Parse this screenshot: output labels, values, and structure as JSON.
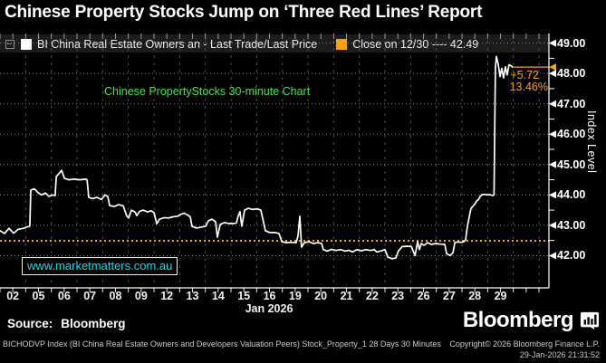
{
  "window": {
    "title": "Chinese Property Stocks Jump on ‘Three Red Lines’ Report"
  },
  "legend": {
    "series_marker_color": "#ffffff",
    "series_label": "BI China Real Estate Owners an - Last Trade/Last Price",
    "close_marker_color": "#f7a11a",
    "close_label": "Close on 12/30 ---- 42.49"
  },
  "annotations": {
    "chart_note": "Chinese PropertyStocks 30-minute Chart",
    "watermark": "www.marketmatters.com.au",
    "change_abs": "+5.72",
    "change_pct": "13.46%"
  },
  "axes": {
    "y_title": "Index Level",
    "x_group_label": "Jan 2026"
  },
  "footer": {
    "source_label": "Source:",
    "source_value": "Bloomberg",
    "logo_text": "Bloomberg",
    "description": "BICHODVP Index (BI China Real Estate Owners and Developers Valuation Peers) Stock_Property_1 28 Days 30 Minutes",
    "copyright": "Copyright© 2026 Bloomberg Finance L.P.",
    "timestamp": "29-Jan-2026 21:31:52"
  },
  "chart_data": {
    "type": "line",
    "title": "Chinese Property Stocks Jump on ‘Three Red Lines’ Report",
    "x_axis": {
      "tick_labels": [
        "02",
        "05",
        "06",
        "07",
        "08",
        "09",
        "12",
        "13",
        "14",
        "15",
        "16",
        "19",
        "20",
        "21",
        "22",
        "23",
        "26",
        "27",
        "28",
        "29"
      ],
      "group_label": "Jan 2026",
      "unit": "trading-day index, 30-minute bars within each day"
    },
    "y_axis": {
      "label": "Index Level",
      "tick_values": [
        42,
        43,
        44,
        45,
        46,
        47,
        48,
        49
      ],
      "ylim": [
        40.9,
        49.3
      ]
    },
    "grid": true,
    "legend_position": "top",
    "close_reference": {
      "label": "Close on 12/30",
      "value": 42.49,
      "color": "#f7a11a"
    },
    "last_price": {
      "value": 48.21,
      "change": 5.72,
      "pct_change": 13.46
    },
    "series": [
      {
        "name": "BI China Real Estate Owners an - Last Trade/Last Price",
        "color": "#ffffff",
        "points": [
          [
            0,
            42.82
          ],
          [
            0.18,
            42.73
          ],
          [
            0.35,
            42.9
          ],
          [
            0.53,
            42.74
          ],
          [
            0.71,
            42.87
          ],
          [
            0.92,
            42.9
          ],
          [
            1.06,
            42.95
          ],
          [
            1.16,
            42.97
          ],
          [
            1.2,
            44.16
          ],
          [
            1.34,
            44.2
          ],
          [
            1.48,
            44.08
          ],
          [
            1.62,
            44.0
          ],
          [
            1.77,
            44.06
          ],
          [
            1.91,
            43.95
          ],
          [
            2.05,
            44.0
          ],
          [
            2.15,
            43.98
          ],
          [
            2.19,
            44.6
          ],
          [
            2.29,
            44.7
          ],
          [
            2.4,
            44.81
          ],
          [
            2.51,
            44.55
          ],
          [
            2.68,
            44.5
          ],
          [
            2.89,
            44.52
          ],
          [
            3.11,
            44.5
          ],
          [
            3.32,
            44.52
          ],
          [
            3.39,
            44.5
          ],
          [
            3.46,
            43.92
          ],
          [
            3.6,
            43.88
          ],
          [
            3.78,
            43.92
          ],
          [
            3.95,
            43.85
          ],
          [
            4.09,
            44.0
          ],
          [
            4.2,
            43.95
          ],
          [
            4.27,
            43.65
          ],
          [
            4.45,
            43.62
          ],
          [
            4.62,
            43.68
          ],
          [
            4.8,
            43.64
          ],
          [
            4.94,
            43.3
          ],
          [
            5.01,
            43.24
          ],
          [
            5.12,
            43.5
          ],
          [
            5.26,
            43.44
          ],
          [
            5.33,
            43.32
          ],
          [
            5.44,
            43.46
          ],
          [
            5.58,
            43.5
          ],
          [
            5.75,
            43.44
          ],
          [
            5.89,
            43.48
          ],
          [
            6.0,
            43.42
          ],
          [
            6.11,
            43.05
          ],
          [
            6.21,
            43.2
          ],
          [
            6.39,
            43.25
          ],
          [
            6.56,
            43.24
          ],
          [
            6.74,
            43.28
          ],
          [
            6.92,
            43.3
          ],
          [
            7.02,
            43.35
          ],
          [
            7.17,
            43.4
          ],
          [
            7.31,
            43.34
          ],
          [
            7.41,
            43.28
          ],
          [
            7.48,
            42.97
          ],
          [
            7.66,
            42.91
          ],
          [
            7.84,
            42.94
          ],
          [
            8.01,
            42.97
          ],
          [
            8.12,
            43.15
          ],
          [
            8.26,
            43.2
          ],
          [
            8.4,
            43.12
          ],
          [
            8.47,
            42.61
          ],
          [
            8.58,
            43.03
          ],
          [
            8.75,
            43.09
          ],
          [
            8.93,
            43.06
          ],
          [
            9.11,
            43.06
          ],
          [
            9.21,
            43.08
          ],
          [
            9.28,
            43.3
          ],
          [
            9.35,
            43.45
          ],
          [
            9.42,
            42.97
          ],
          [
            9.53,
            43.5
          ],
          [
            9.67,
            43.56
          ],
          [
            9.85,
            43.52
          ],
          [
            10.02,
            43.54
          ],
          [
            10.16,
            43.5
          ],
          [
            10.24,
            43.2
          ],
          [
            10.34,
            42.82
          ],
          [
            10.52,
            42.76
          ],
          [
            10.73,
            42.76
          ],
          [
            10.87,
            42.73
          ],
          [
            10.98,
            42.46
          ],
          [
            11.15,
            42.43
          ],
          [
            11.37,
            42.44
          ],
          [
            11.54,
            42.43
          ],
          [
            11.61,
            42.65
          ],
          [
            11.68,
            43.3
          ],
          [
            11.75,
            42.28
          ],
          [
            11.86,
            42.43
          ],
          [
            12.04,
            42.46
          ],
          [
            12.21,
            42.4
          ],
          [
            12.39,
            42.43
          ],
          [
            12.53,
            42.4
          ],
          [
            12.6,
            42.2
          ],
          [
            12.74,
            42.15
          ],
          [
            12.92,
            42.21
          ],
          [
            13.1,
            42.17
          ],
          [
            13.27,
            42.2
          ],
          [
            13.45,
            42.15
          ],
          [
            13.59,
            42.18
          ],
          [
            13.73,
            42.12
          ],
          [
            13.91,
            42.2
          ],
          [
            14.08,
            42.16
          ],
          [
            14.26,
            42.2
          ],
          [
            14.44,
            42.17
          ],
          [
            14.58,
            42.2
          ],
          [
            14.68,
            42.12
          ],
          [
            14.86,
            42.16
          ],
          [
            15.0,
            42.2
          ],
          [
            15.11,
            41.95
          ],
          [
            15.28,
            41.9
          ],
          [
            15.42,
            41.92
          ],
          [
            15.53,
            42.16
          ],
          [
            15.67,
            42.3
          ],
          [
            15.85,
            42.31
          ],
          [
            16.03,
            42.3
          ],
          [
            16.17,
            42.0
          ],
          [
            16.27,
            42.46
          ],
          [
            16.34,
            42.2
          ],
          [
            16.41,
            42.4
          ],
          [
            16.52,
            42.34
          ],
          [
            16.66,
            42.43
          ],
          [
            16.8,
            42.37
          ],
          [
            16.98,
            42.4
          ],
          [
            17.16,
            42.38
          ],
          [
            17.33,
            42.37
          ],
          [
            17.4,
            42.07
          ],
          [
            17.54,
            42.0
          ],
          [
            17.65,
            42.1
          ],
          [
            17.72,
            42.43
          ],
          [
            17.83,
            42.45
          ],
          [
            17.97,
            42.44
          ],
          [
            18.07,
            42.46
          ],
          [
            18.14,
            42.52
          ],
          [
            18.21,
            42.97
          ],
          [
            18.28,
            43.27
          ],
          [
            18.35,
            43.55
          ],
          [
            18.42,
            43.62
          ],
          [
            18.5,
            43.7
          ],
          [
            18.57,
            43.8
          ],
          [
            18.64,
            43.85
          ],
          [
            18.71,
            43.95
          ],
          [
            18.78,
            44.01
          ],
          [
            18.89,
            44.02
          ],
          [
            18.99,
            44.0
          ],
          [
            19.09,
            44.01
          ],
          [
            19.2,
            43.98
          ],
          [
            19.25,
            44.0
          ],
          [
            19.3,
            48.2
          ],
          [
            19.34,
            48.56
          ],
          [
            19.41,
            48.3
          ],
          [
            19.48,
            47.9
          ],
          [
            19.55,
            48.17
          ],
          [
            19.62,
            47.85
          ],
          [
            19.69,
            48.22
          ],
          [
            19.76,
            47.95
          ],
          [
            19.83,
            48.28
          ],
          [
            19.9,
            48.26
          ],
          [
            19.97,
            48.21
          ]
        ]
      }
    ]
  }
}
